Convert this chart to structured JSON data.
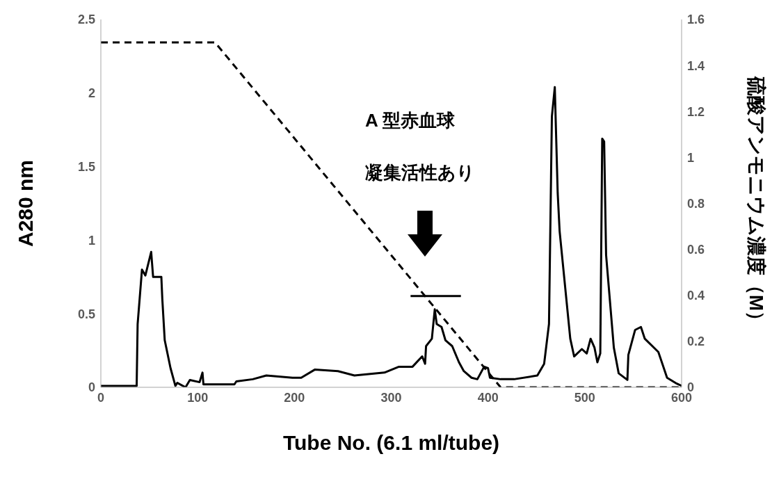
{
  "chart_data": {
    "type": "line",
    "xlabel": "Tube No. (6.1 ml/tube)",
    "ylabel": "A280 nm",
    "y2label": "硫酸アンモニウム濃度（M）",
    "xlim": [
      0,
      600
    ],
    "xticks": [
      0,
      100,
      200,
      300,
      400,
      500,
      600
    ],
    "ylim": [
      0,
      2.5
    ],
    "yticks": [
      0,
      0.5,
      1,
      1.5,
      2,
      2.5
    ],
    "y2lim": [
      0,
      1.6
    ],
    "y2ticks": [
      0,
      0.2,
      0.4,
      0.6,
      0.8,
      1,
      1.2,
      1.4,
      1.6
    ],
    "marker": "none",
    "annotations": [
      "A 型赤血球",
      "凝集活性あり"
    ],
    "series": [
      {
        "color": "#000000",
        "line_style": "solid",
        "x": [
          0,
          37,
          38,
          42.5,
          46,
          52,
          54,
          62.5,
          63.5,
          66,
          72,
          77,
          79,
          87.5,
          92,
          102,
          105,
          106,
          138,
          140,
          157,
          171,
          198,
          207,
          221,
          245,
          262,
          293,
          308,
          322,
          332,
          335,
          336,
          342,
          345,
          347,
          352,
          356,
          363,
          370,
          375,
          383,
          389,
          396,
          400,
          402,
          413,
          427,
          451,
          458,
          463,
          466,
          469,
          472,
          474,
          485,
          489,
          497,
          502,
          506,
          510,
          513,
          516,
          518,
          520,
          522,
          530,
          535,
          544,
          545,
          552,
          558,
          562,
          576,
          585,
          595,
          600
        ],
        "values": [
          0.01,
          0.01,
          0.43,
          0.8,
          0.76,
          0.92,
          0.75,
          0.75,
          0.6,
          0.32,
          0.13,
          0.01,
          0.03,
          0.0,
          0.05,
          0.035,
          0.1,
          0.02,
          0.02,
          0.04,
          0.055,
          0.08,
          0.065,
          0.065,
          0.12,
          0.11,
          0.08,
          0.1,
          0.14,
          0.14,
          0.21,
          0.16,
          0.28,
          0.33,
          0.53,
          0.43,
          0.41,
          0.32,
          0.28,
          0.17,
          0.11,
          0.065,
          0.055,
          0.14,
          0.13,
          0.065,
          0.055,
          0.055,
          0.08,
          0.16,
          0.43,
          1.84,
          2.04,
          1.32,
          1.06,
          0.33,
          0.21,
          0.26,
          0.23,
          0.33,
          0.27,
          0.17,
          0.23,
          1.69,
          1.67,
          0.9,
          0.27,
          0.095,
          0.05,
          0.22,
          0.39,
          0.41,
          0.33,
          0.24,
          0.065,
          0.025,
          0.01
        ]
      },
      {
        "color": "#000000",
        "line_style": "dashed",
        "axis": "y2",
        "x": [
          0,
          118,
          413,
          600
        ],
        "values": [
          1.5,
          1.5,
          0,
          0
        ]
      },
      {
        "color": "#000000",
        "line_style": "solid",
        "x": [
          320,
          372
        ],
        "values": [
          0.62,
          0.62
        ]
      }
    ]
  }
}
